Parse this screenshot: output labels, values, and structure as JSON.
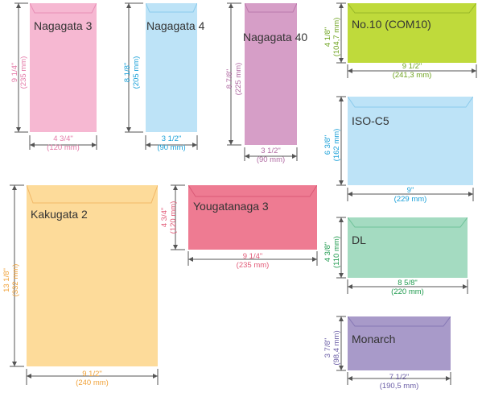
{
  "colors": {
    "pink": "#f6b8d2",
    "pink_text": "#e47aa8",
    "blue": "#bde3f7",
    "blue_text": "#1aa0d8",
    "purple": "#d69ec7",
    "purple_text": "#b06aa2",
    "lime": "#bfda3b",
    "lime_text": "#6ea31f",
    "peach": "#fddb9a",
    "peach_text": "#f0a23a",
    "rose": "#ee7b92",
    "rose_text": "#e25b78",
    "mint": "#a4dbc1",
    "mint_text": "#1f9a4e",
    "lavender": "#a89ac9",
    "lavender_text": "#6b5ea6",
    "line": "#555555"
  },
  "envelopes": [
    {
      "id": "nagagata-3",
      "name": "Nagagata 3",
      "width": "4 3/4\"",
      "width_mm": "(120 mm)",
      "height": "9 1/4\"",
      "height_mm": "(235 mm)"
    },
    {
      "id": "nagagata-4",
      "name": "Nagagata 4",
      "width": "3 1/2\"",
      "width_mm": "(90 mm)",
      "height": "8 1/8\"",
      "height_mm": "(205 mm)"
    },
    {
      "id": "nagagata-40",
      "name": "Nagagata 40",
      "width": "3 1/2\"",
      "width_mm": "(90 mm)",
      "height": "8 7/8\"",
      "height_mm": "(225 mm)"
    },
    {
      "id": "no10",
      "name": "No.10 (COM10)",
      "width": "9 1/2\"",
      "width_mm": "(241,3 mm)",
      "height": "4 1/8\"",
      "height_mm": "(104,7 mm)"
    },
    {
      "id": "iso-c5",
      "name": "ISO-C5",
      "width": "9\"",
      "width_mm": "(229 mm)",
      "height": "6 3/8\"",
      "height_mm": "(162 mm)"
    },
    {
      "id": "kakugata-2",
      "name": "Kakugata 2",
      "width": "9 1/2\"",
      "width_mm": "(240 mm)",
      "height": "13 1/8\"",
      "height_mm": "(332 mm)"
    },
    {
      "id": "yougatanaga-3",
      "name": "Yougatanaga 3",
      "width": "9 1/4\"",
      "width_mm": "(235 mm)",
      "height": "4 3/4\"",
      "height_mm": "(120 mm)"
    },
    {
      "id": "dl",
      "name": "DL",
      "width": "8 5/8\"",
      "width_mm": "(220 mm)",
      "height": "4 3/8\"",
      "height_mm": "(110 mm)"
    },
    {
      "id": "monarch",
      "name": "Monarch",
      "width": "7 1/2\"",
      "width_mm": "(190,5 mm)",
      "height": "3 7/8\"",
      "height_mm": "(98,4 mm)"
    }
  ]
}
